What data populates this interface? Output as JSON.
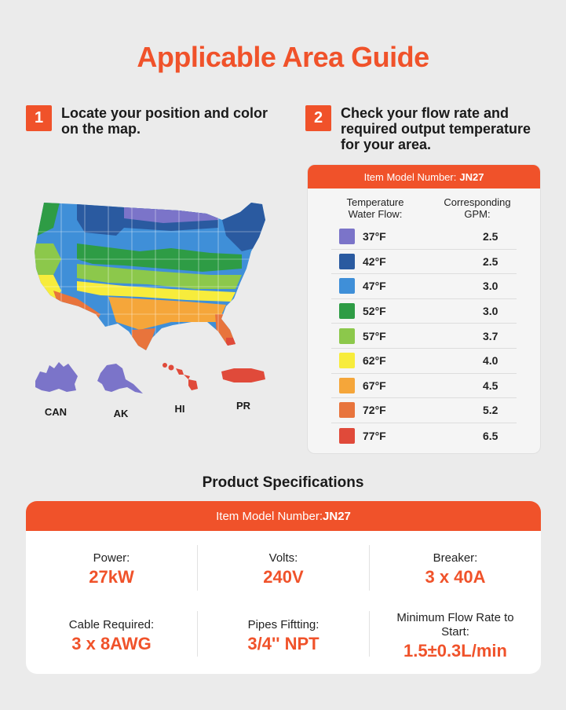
{
  "title": "Applicable Area Guide",
  "steps": [
    {
      "num": "1",
      "text": "Locate your position and color on the map."
    },
    {
      "num": "2",
      "text": "Check your flow rate and required output temperature for your area."
    }
  ],
  "territories": [
    {
      "label": "CAN",
      "color": "#7070c8"
    },
    {
      "label": "AK",
      "color": "#7070c8"
    },
    {
      "label": "HI",
      "color": "#e8553a"
    },
    {
      "label": "PR",
      "color": "#e8553a"
    }
  ],
  "flow_table": {
    "header_prefix": "Item Model Number:",
    "model": "JN27",
    "col_temp": "Temperature Water Flow:",
    "col_gpm": "Corresponding GPM:",
    "rows": [
      {
        "temp": "37°F",
        "gpm": "2.5",
        "color": "#7b74c9"
      },
      {
        "temp": "42°F",
        "gpm": "2.5",
        "color": "#2a5aa0"
      },
      {
        "temp": "47°F",
        "gpm": "3.0",
        "color": "#3f8fd8"
      },
      {
        "temp": "52°F",
        "gpm": "3.0",
        "color": "#2e9c45"
      },
      {
        "temp": "57°F",
        "gpm": "3.7",
        "color": "#8cc84b"
      },
      {
        "temp": "62°F",
        "gpm": "4.0",
        "color": "#f7ec3c"
      },
      {
        "temp": "67°F",
        "gpm": "4.5",
        "color": "#f5a63a"
      },
      {
        "temp": "72°F",
        "gpm": "5.2",
        "color": "#e8743c"
      },
      {
        "temp": "77°F",
        "gpm": "6.5",
        "color": "#e04a3a"
      }
    ]
  },
  "specs": {
    "title": "Product Specifications",
    "header_prefix": "Item Model Number:",
    "model": "JN27",
    "items": [
      {
        "label": "Power:",
        "value": "27kW"
      },
      {
        "label": "Volts:",
        "value": "240V"
      },
      {
        "label": "Breaker:",
        "value": "3 x 40A"
      },
      {
        "label": "Cable Required:",
        "value": "3 x 8AWG"
      },
      {
        "label": "Pipes Fiftting:",
        "value": "3/4'' NPT"
      },
      {
        "label": "Minimum Flow Rate to Start:",
        "value": "1.5±0.3L/min"
      }
    ]
  }
}
